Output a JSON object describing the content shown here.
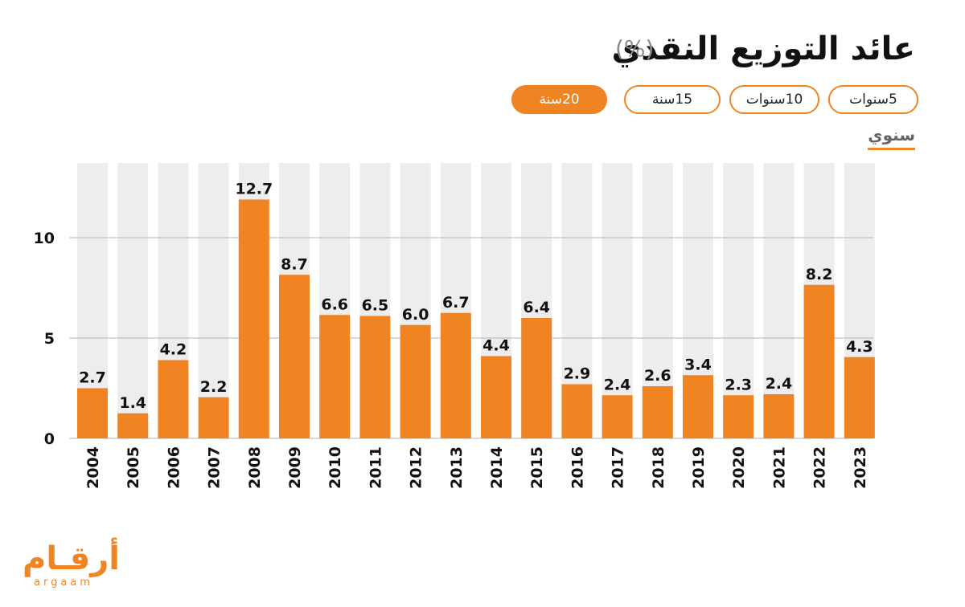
{
  "header": {
    "title": "عائد التوزيع النقدي",
    "unit": "(%)"
  },
  "period_buttons": [
    {
      "label": "5سنوات",
      "active": false
    },
    {
      "label": "10سنوات",
      "active": false
    },
    {
      "label": "15سنة",
      "active": false
    },
    {
      "label": "20سنة",
      "active": true
    }
  ],
  "subtab": {
    "label": "سنوي"
  },
  "logo": {
    "arabic": "أرقـام",
    "latin": "argaam"
  },
  "colors": {
    "accent": "#f08423",
    "bar": "#f08423",
    "bar_background": "#ededed",
    "gridline": "#b5b5b5"
  },
  "chart_data": {
    "type": "bar",
    "categories": [
      "2004",
      "2005",
      "2006",
      "2007",
      "2008",
      "2009",
      "2010",
      "2011",
      "2012",
      "2013",
      "2014",
      "2015",
      "2016",
      "2017",
      "2018",
      "2019",
      "2020",
      "2021",
      "2022",
      "2023"
    ],
    "values": [
      2.7,
      1.4,
      4.2,
      2.2,
      12.7,
      8.7,
      6.6,
      6.5,
      6.0,
      6.7,
      4.4,
      6.4,
      2.9,
      2.4,
      2.6,
      3.4,
      2.3,
      2.4,
      8.2,
      4.3
    ],
    "bar_heights": [
      2.5,
      1.25,
      3.9,
      2.05,
      11.9,
      8.15,
      6.15,
      6.1,
      5.65,
      6.25,
      4.1,
      6.0,
      2.7,
      2.15,
      2.6,
      3.15,
      2.15,
      2.2,
      7.65,
      4.05
    ],
    "yticks": [
      0,
      5,
      10
    ],
    "ylim": [
      0,
      13.7
    ],
    "title": "عائد التوزيع النقدي",
    "xlabel": "",
    "ylabel": ""
  }
}
